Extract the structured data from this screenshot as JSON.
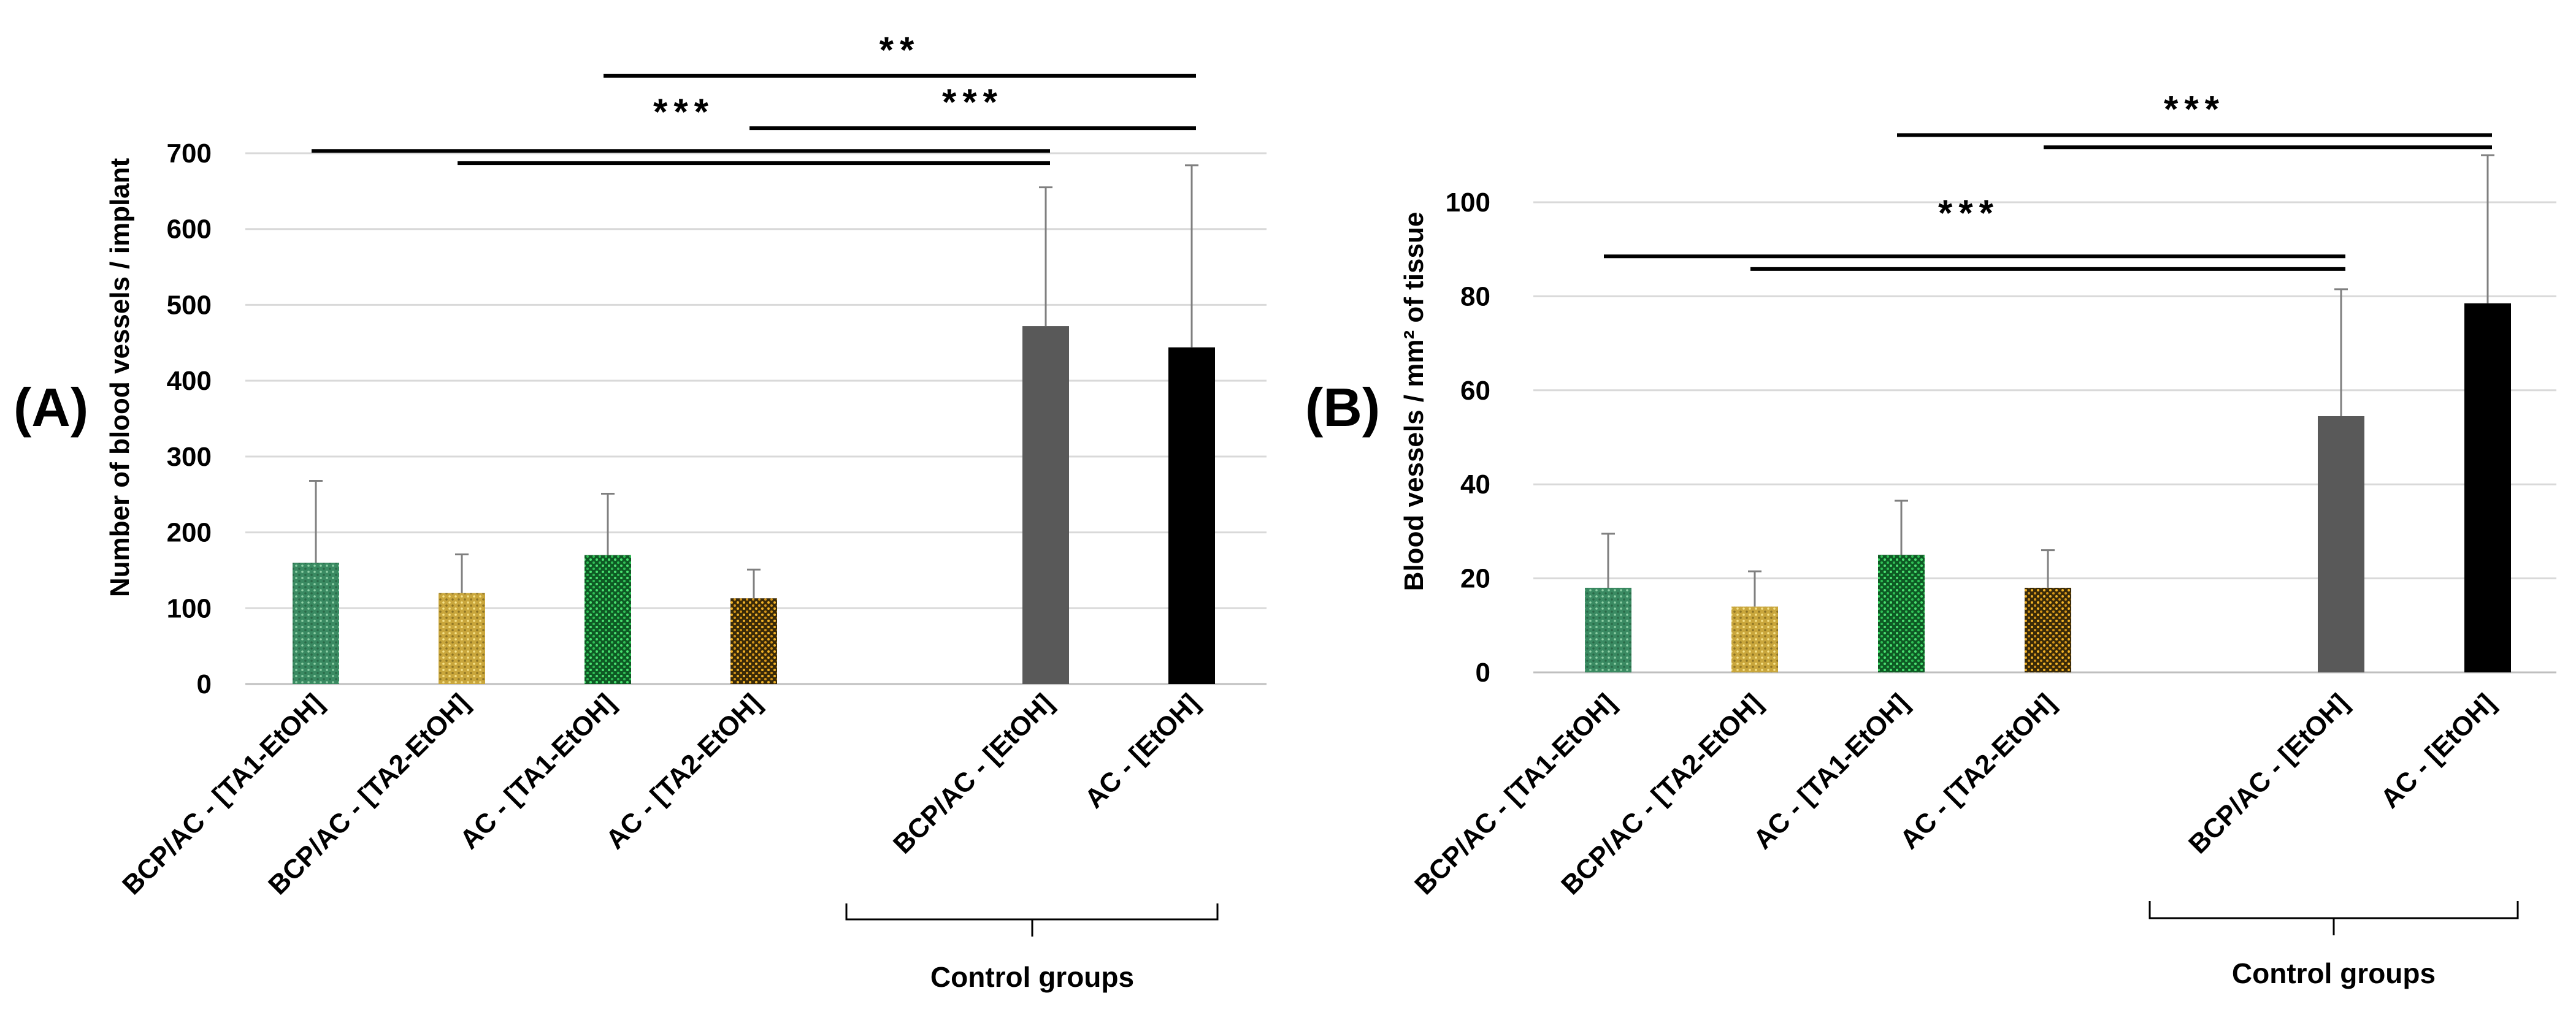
{
  "colors": {
    "teal": "#3f8f64",
    "yellow": "#d4b040",
    "green": "#1f9a3a",
    "orange": "#c98d1c",
    "gray": "#595959",
    "black": "#000000"
  },
  "chart_data": [
    {
      "type": "bar",
      "panel_label": "(A)",
      "ylabel": "Number of blood vessels / implant",
      "ylim": [
        0,
        700
      ],
      "yticks": [
        "0",
        "100",
        "200",
        "300",
        "400",
        "500",
        "600",
        "700"
      ],
      "categories": [
        "BCP/AC - [TA1-EtOH]",
        "BCP/AC - [TA2-EtOH]",
        "AC - [TA1-EtOH]",
        "AC - [TA2-EtOH]",
        "BCP/AC - [EtOH]",
        "AC - [EtOH]"
      ],
      "slots": [
        0,
        1,
        2,
        3,
        5,
        6
      ],
      "values": [
        160,
        120,
        170,
        113,
        472,
        444
      ],
      "errors": [
        108,
        51,
        81,
        38,
        183,
        240
      ],
      "bar_colors": [
        "teal",
        "yellow",
        "green",
        "orange",
        "gray",
        "black"
      ],
      "control_label": "Control groups",
      "significance": [
        {
          "label": "**",
          "lines": [
            {
              "from": 2.0,
              "to": 6.0,
              "value": 802
            }
          ]
        },
        {
          "label": "***",
          "lines": [
            {
              "from": 0.0,
              "to": 5.0,
              "value": 703
            },
            {
              "from": 1.0,
              "to": 5.0,
              "value": 687
            }
          ]
        },
        {
          "label": "***",
          "lines": [
            {
              "from": 3.0,
              "to": 6.0,
              "value": 733
            }
          ]
        }
      ]
    },
    {
      "type": "bar",
      "panel_label": "(B)",
      "ylabel": "Blood vessels / mm² of tissue",
      "ylim": [
        0,
        100
      ],
      "yticks": [
        "0",
        "20",
        "40",
        "60",
        "80",
        "100"
      ],
      "categories": [
        "BCP/AC - [TA1-EtOH]",
        "BCP/AC - [TA2-EtOH]",
        "AC - [TA1-EtOH]",
        "AC - [TA2-EtOH]",
        "BCP/AC - [EtOH]",
        "AC - [EtOH]"
      ],
      "slots": [
        0,
        1,
        2,
        3,
        5,
        6
      ],
      "values": [
        18,
        14,
        25,
        18,
        54.5,
        78.5
      ],
      "errors": [
        11.5,
        7.5,
        11.5,
        8,
        27,
        31.5
      ],
      "bar_colors": [
        "teal",
        "yellow",
        "green",
        "orange",
        "gray",
        "black"
      ],
      "control_label": "Control groups",
      "significance": [
        {
          "label": "***",
          "lines": [
            {
              "from": 0.0,
              "to": 5.0,
              "value": 88.5
            },
            {
              "from": 1.0,
              "to": 5.0,
              "value": 85.8
            }
          ]
        },
        {
          "label": "***",
          "lines": [
            {
              "from": 2.0,
              "to": 6.0,
              "value": 114.3
            },
            {
              "from": 3.0,
              "to": 6.0,
              "value": 111.7
            }
          ]
        }
      ]
    }
  ]
}
